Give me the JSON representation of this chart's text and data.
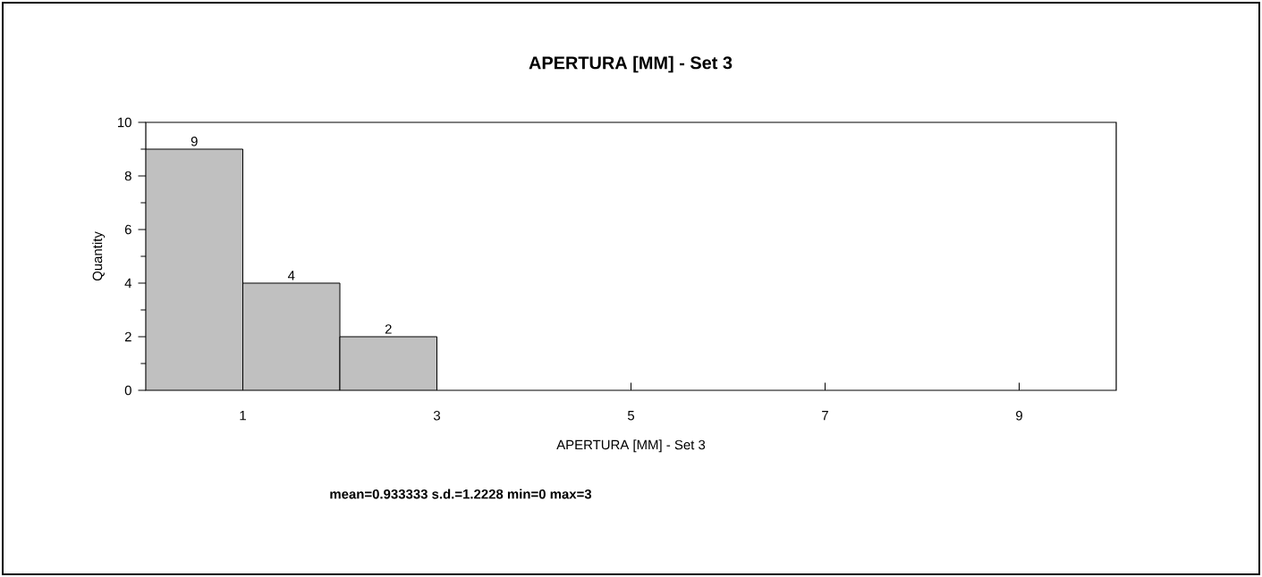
{
  "chart_data": {
    "type": "histogram",
    "title": "APERTURA [MM] - Set 3",
    "xlabel": "APERTURA [MM] - Set 3",
    "ylabel": "Quantity",
    "bins": [
      0,
      1,
      2,
      3
    ],
    "values": [
      9,
      4,
      2
    ],
    "color": "#c0c0c0",
    "xlim": [
      0,
      10
    ],
    "xticks": [
      1,
      3,
      5,
      7,
      9
    ],
    "ylim": [
      0,
      10
    ],
    "yticks": [
      0,
      2,
      4,
      6,
      8,
      10
    ],
    "data_labels": true,
    "grid": false,
    "annotations": [
      "mean=0.933333 s.d.=1.2228 min=0 max=3"
    ]
  }
}
